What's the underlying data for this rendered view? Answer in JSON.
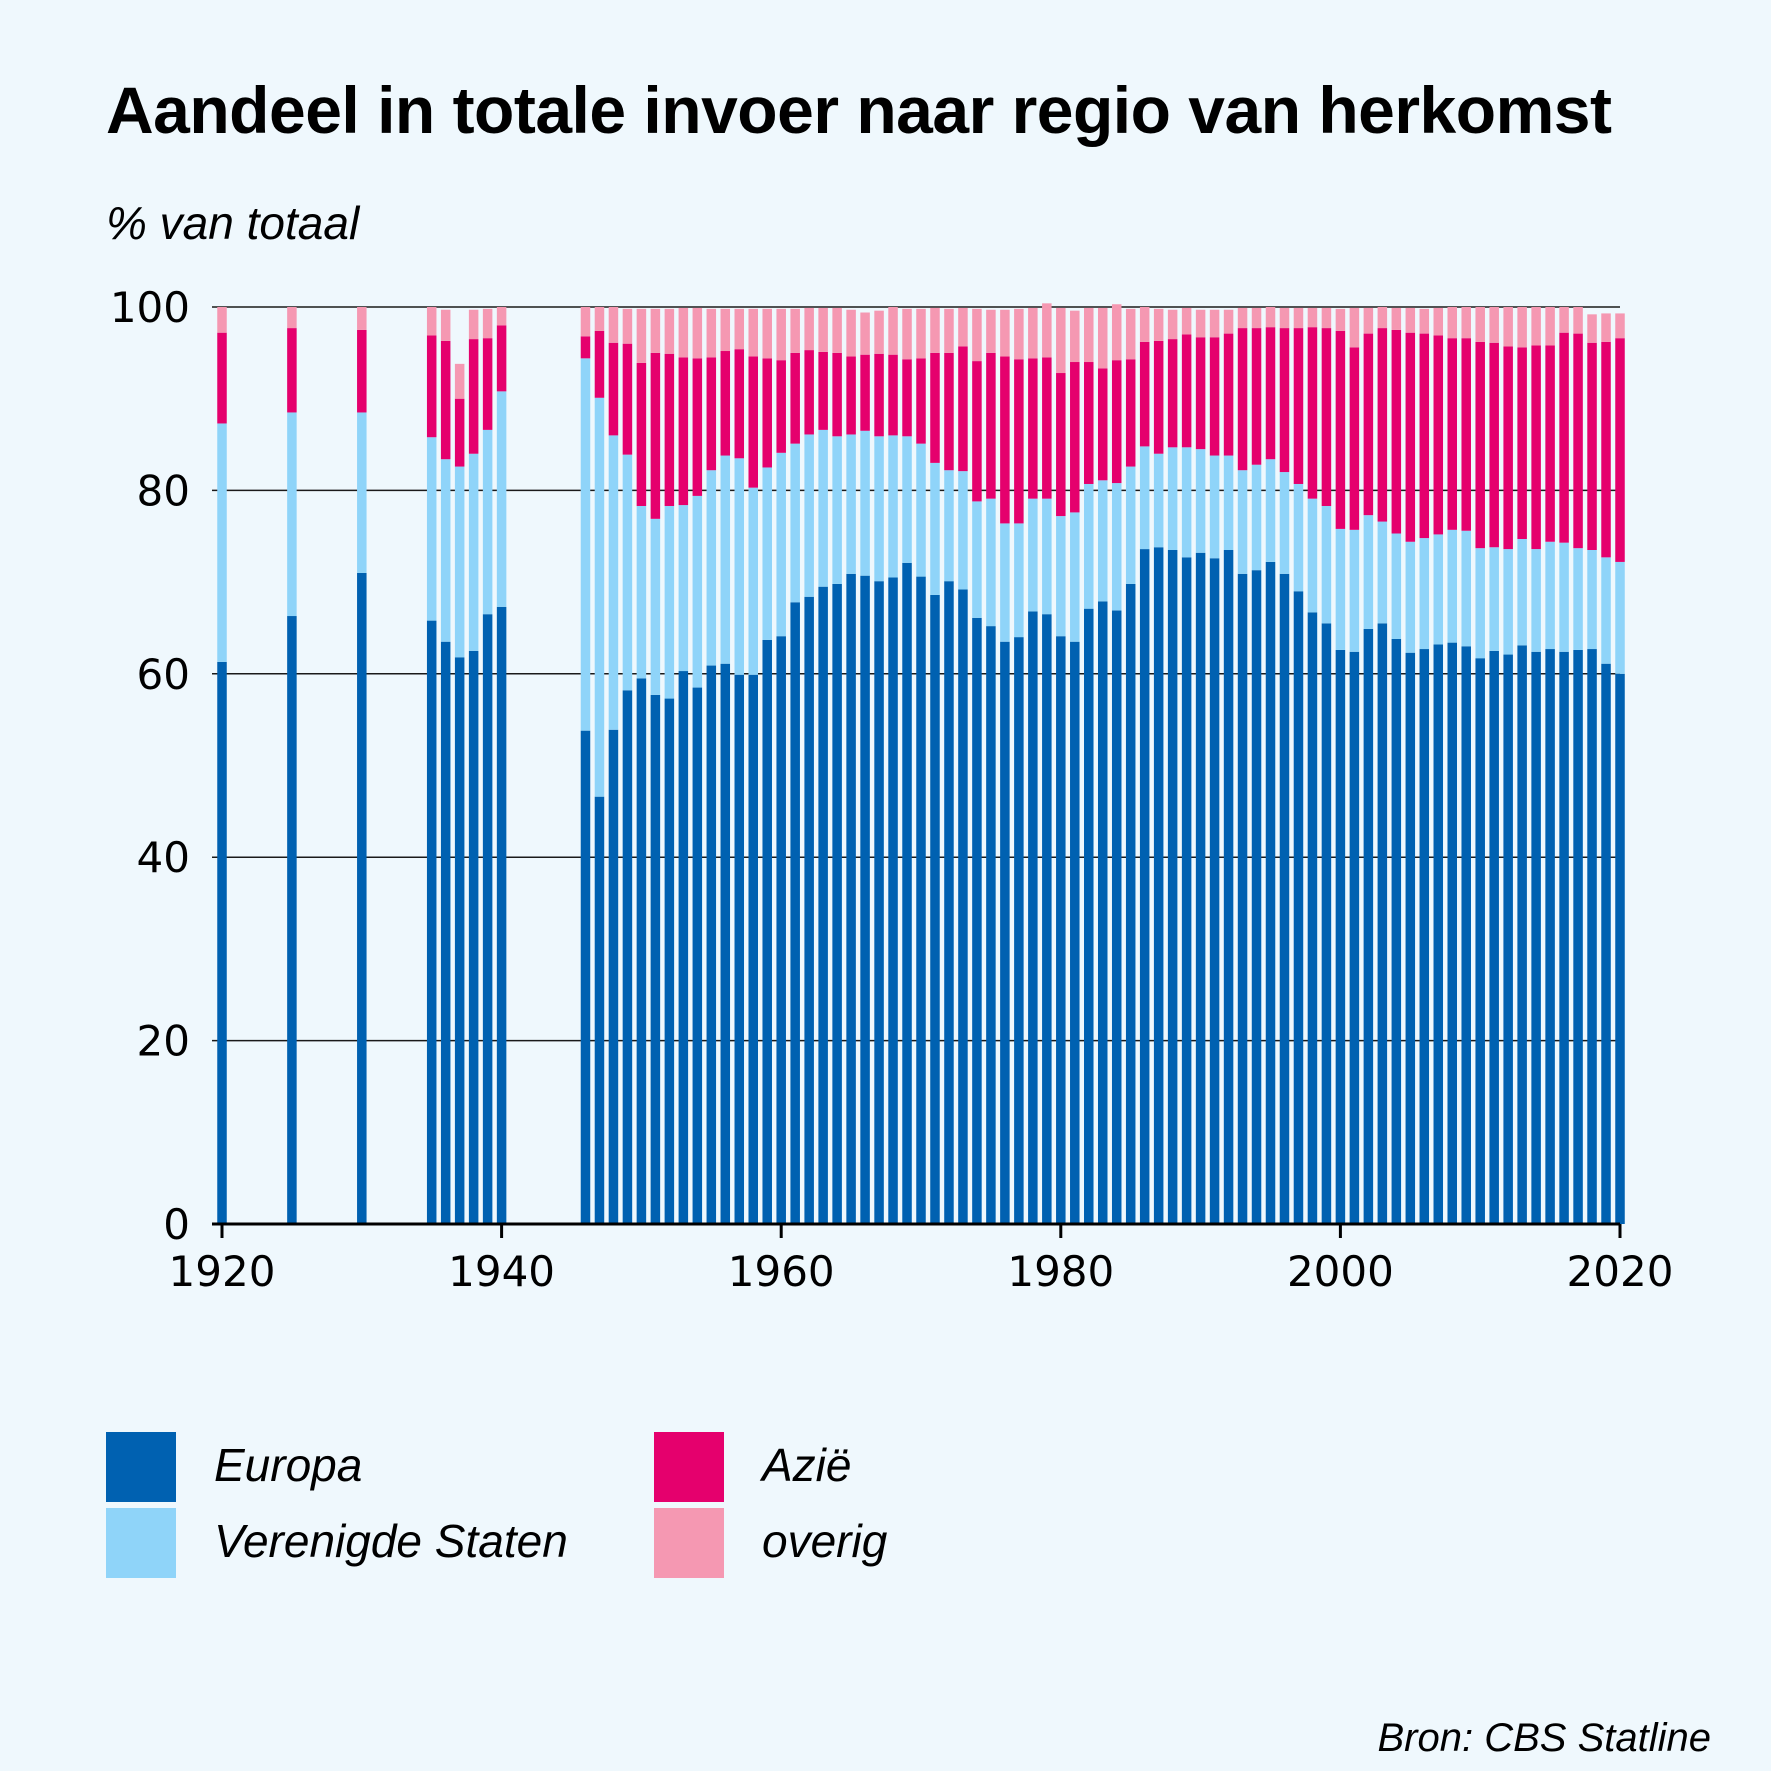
{
  "title": "Aandeel in totale invoer naar regio van herkomst",
  "source": "Bron: CBS Statline",
  "chart_data": {
    "type": "bar",
    "stacked": true,
    "title": "Aandeel in totale invoer naar regio van herkomst",
    "ylabel": "% van totaal",
    "xlabel": "",
    "ylim": [
      0,
      100
    ],
    "xlim": [
      1920,
      2020
    ],
    "yticks": [
      0,
      20,
      40,
      60,
      80,
      100
    ],
    "xticks": [
      1920,
      1940,
      1960,
      1980,
      2000,
      2020
    ],
    "grid": true,
    "legend_position": "bottom",
    "x": [
      1920,
      1925,
      1930,
      1935,
      1936,
      1937,
      1938,
      1939,
      1940,
      1946,
      1947,
      1948,
      1949,
      1950,
      1951,
      1952,
      1953,
      1954,
      1955,
      1956,
      1957,
      1958,
      1959,
      1960,
      1961,
      1962,
      1963,
      1964,
      1965,
      1966,
      1967,
      1968,
      1969,
      1970,
      1971,
      1972,
      1973,
      1974,
      1975,
      1976,
      1977,
      1978,
      1979,
      1980,
      1981,
      1982,
      1983,
      1984,
      1985,
      1986,
      1987,
      1988,
      1989,
      1990,
      1991,
      1992,
      1993,
      1994,
      1995,
      1996,
      1997,
      1998,
      1999,
      2000,
      2001,
      2002,
      2003,
      2004,
      2005,
      2006,
      2007,
      2008,
      2009,
      2010,
      2011,
      2012,
      2013,
      2014,
      2015,
      2016,
      2017,
      2018,
      2019,
      2020
    ],
    "series": [
      {
        "name": "Europa",
        "color": "#0061b1",
        "values": [
          61.3,
          66.3,
          71.0,
          65.8,
          63.5,
          61.8,
          62.5,
          66.5,
          67.3,
          53.8,
          46.6,
          53.9,
          58.2,
          59.5,
          57.7,
          57.3,
          60.3,
          58.5,
          60.9,
          61.1,
          59.9,
          59.9,
          63.7,
          64.1,
          67.8,
          68.4,
          69.5,
          69.8,
          70.9,
          70.7,
          70.1,
          70.5,
          72.1,
          70.6,
          68.6,
          70.1,
          69.2,
          66.1,
          65.2,
          63.5,
          64.0,
          66.8,
          66.5,
          64.1,
          63.5,
          67.1,
          67.9,
          66.9,
          69.8,
          73.6,
          73.8,
          73.5,
          72.7,
          73.2,
          72.6,
          73.5,
          70.9,
          71.3,
          72.2,
          70.9,
          69.0,
          66.7,
          65.5,
          62.6,
          62.4,
          64.9,
          65.5,
          63.8,
          62.3,
          62.7,
          63.2,
          63.4,
          63.0,
          61.7,
          62.5,
          62.1,
          63.1,
          62.4,
          62.7,
          62.4,
          62.6,
          62.7,
          61.1,
          60.0
        ]
      },
      {
        "name": "Verenigde Staten",
        "color": "#8fd4f9",
        "values": [
          26.0,
          22.2,
          17.5,
          20.0,
          19.9,
          20.8,
          21.5,
          20.1,
          23.5,
          40.6,
          43.5,
          32.1,
          25.7,
          18.8,
          19.2,
          21.0,
          18.1,
          20.9,
          21.3,
          22.7,
          23.6,
          20.4,
          18.8,
          20.0,
          17.3,
          17.7,
          17.1,
          16.1,
          15.2,
          15.8,
          15.8,
          15.5,
          13.8,
          14.5,
          14.4,
          12.1,
          12.9,
          12.7,
          13.9,
          12.9,
          12.4,
          12.3,
          12.6,
          13.1,
          14.1,
          13.6,
          13.2,
          13.9,
          12.8,
          11.2,
          10.2,
          11.2,
          12.0,
          11.3,
          11.2,
          10.3,
          11.3,
          11.5,
          11.2,
          11.1,
          11.7,
          12.4,
          12.8,
          13.2,
          13.3,
          12.4,
          11.1,
          11.5,
          12.1,
          12.1,
          12.0,
          12.3,
          12.6,
          12.0,
          11.3,
          11.5,
          11.6,
          11.2,
          11.7,
          11.9,
          11.1,
          10.8,
          11.6,
          12.2
        ]
      },
      {
        "name": "Azië",
        "color": "#e5006d",
        "values": [
          9.9,
          9.2,
          9.0,
          11.1,
          12.9,
          7.4,
          12.5,
          10.0,
          7.2,
          2.4,
          7.3,
          10.1,
          12.1,
          15.6,
          18.1,
          16.6,
          16.1,
          15.0,
          12.3,
          11.4,
          11.9,
          14.3,
          11.9,
          10.1,
          9.9,
          9.2,
          8.5,
          9.1,
          8.5,
          8.3,
          9.0,
          8.8,
          8.4,
          9.3,
          12.0,
          12.8,
          13.6,
          15.3,
          15.9,
          18.2,
          17.9,
          15.3,
          15.4,
          15.6,
          16.4,
          13.3,
          12.2,
          13.4,
          11.7,
          11.4,
          12.3,
          11.8,
          12.3,
          12.2,
          12.9,
          13.3,
          15.5,
          14.9,
          14.4,
          15.7,
          17.0,
          18.7,
          19.4,
          21.6,
          19.9,
          19.8,
          21.1,
          22.2,
          22.8,
          22.3,
          21.7,
          20.9,
          21.0,
          22.5,
          22.3,
          22.1,
          20.9,
          22.2,
          21.4,
          22.9,
          23.4,
          22.6,
          23.5,
          24.4
        ]
      },
      {
        "name": "overig",
        "color": "#f598b2",
        "values": [
          2.8,
          2.3,
          2.5,
          3.1,
          3.4,
          3.8,
          3.2,
          3.2,
          2.0,
          3.2,
          2.6,
          3.9,
          3.8,
          5.9,
          4.8,
          4.9,
          5.4,
          5.5,
          5.3,
          4.6,
          4.4,
          5.2,
          5.4,
          5.6,
          4.8,
          4.6,
          4.8,
          4.9,
          5.1,
          4.6,
          4.7,
          5.2,
          5.5,
          5.4,
          4.9,
          4.8,
          4.2,
          5.7,
          4.7,
          5.1,
          5.5,
          5.5,
          5.9,
          7.1,
          5.6,
          5.9,
          6.6,
          6.1,
          5.5,
          3.8,
          3.5,
          3.2,
          2.9,
          3.0,
          3.0,
          2.6,
          2.2,
          2.2,
          2.2,
          2.2,
          2.2,
          2.1,
          2.2,
          2.4,
          4.3,
          2.8,
          2.3,
          2.4,
          2.7,
          2.7,
          3.0,
          3.4,
          3.4,
          3.8,
          3.9,
          4.3,
          4.4,
          4.2,
          4.2,
          2.8,
          2.9,
          3.1,
          3.1,
          2.7
        ]
      }
    ]
  }
}
